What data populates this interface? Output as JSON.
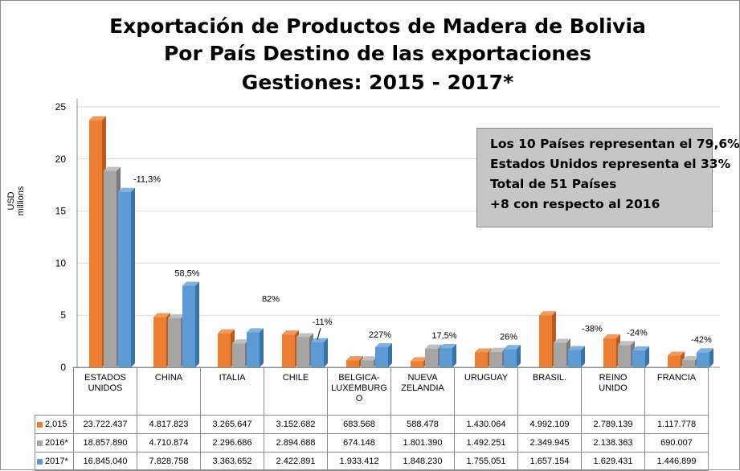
{
  "title_lines": [
    "Exportación de Productos de Madera de Bolivia",
    "Por País Destino de las exportaciones",
    "Gestiones: 2015 - 2017*"
  ],
  "infobox_lines": [
    "Los 10 Países representan el 79,6%",
    "Estados Unidos representa el 33%",
    "Total de 51 Países",
    "+8 con respecto al 2016"
  ],
  "colors": {
    "s2015": "#ED7D31",
    "s2016": "#A5A5A5",
    "s2017": "#5B9BD5"
  },
  "chart_data": {
    "type": "bar",
    "ylabel": "USD millions",
    "ylim": [
      0,
      25
    ],
    "yticks": [
      0,
      5,
      10,
      15,
      20,
      25
    ],
    "grid": true,
    "legend": "table-rows",
    "categories": [
      "ESTADOS UNIDOS",
      "CHINA",
      "ITALIA",
      "CHILE",
      "BELGICA-LUXEMBURGO",
      "NUEVA ZELANDIA",
      "URUGUAY",
      "BRASIL.",
      "REINO UNIDO",
      "FRANCIA"
    ],
    "category_labels": [
      [
        "ESTADOS",
        "UNIDOS"
      ],
      [
        "CHINA"
      ],
      [
        "ITALIA"
      ],
      [
        "CHILE"
      ],
      [
        "BELGICA-",
        "LUXEMBURG",
        "O"
      ],
      [
        "NUEVA",
        "ZELANDIA"
      ],
      [
        "URUGUAY"
      ],
      [
        "BRASIL."
      ],
      [
        "REINO",
        "UNIDO"
      ],
      [
        "FRANCIA"
      ]
    ],
    "series": [
      {
        "name": "2,015",
        "values": [
          23.722437,
          4.817823,
          3.265647,
          3.152682,
          0.683568,
          0.588478,
          1.430064,
          4.992109,
          2.789139,
          1.117778
        ],
        "labels": [
          "23.722.437",
          "4.817.823",
          "3.265.647",
          "3.152.682",
          "683.568",
          "588.478",
          "1.430.064",
          "4.992.109",
          "2.789.139",
          "1.117.778"
        ]
      },
      {
        "name": "2016*",
        "values": [
          18.85789,
          4.710874,
          2.296686,
          2.894688,
          0.674148,
          1.80139,
          1.492251,
          2.349945,
          2.138363,
          0.690007
        ],
        "labels": [
          "18.857.890",
          "4.710.874",
          "2.296.686",
          "2.894.688",
          "674.148",
          "1.801.390",
          "1.492.251",
          "2.349.945",
          "2.138.363",
          "690.007"
        ]
      },
      {
        "name": "2017*",
        "values": [
          16.84504,
          7.828758,
          3.363652,
          2.422891,
          1.933412,
          1.84823,
          1.755051,
          1.657154,
          1.629431,
          1.446899
        ],
        "labels": [
          "16.845.040",
          "7.828.758",
          "3.363.652",
          "2.422.891",
          "1.933.412",
          "1.848.230",
          "1.755.051",
          "1.657.154",
          "1.629.431",
          "1.446.899"
        ]
      }
    ],
    "annotations": [
      "-11,3%",
      "58,5%",
      "82%",
      "-11%",
      "227%",
      "17,5%",
      "26%",
      "-38%",
      "-24%",
      "-42%"
    ]
  }
}
